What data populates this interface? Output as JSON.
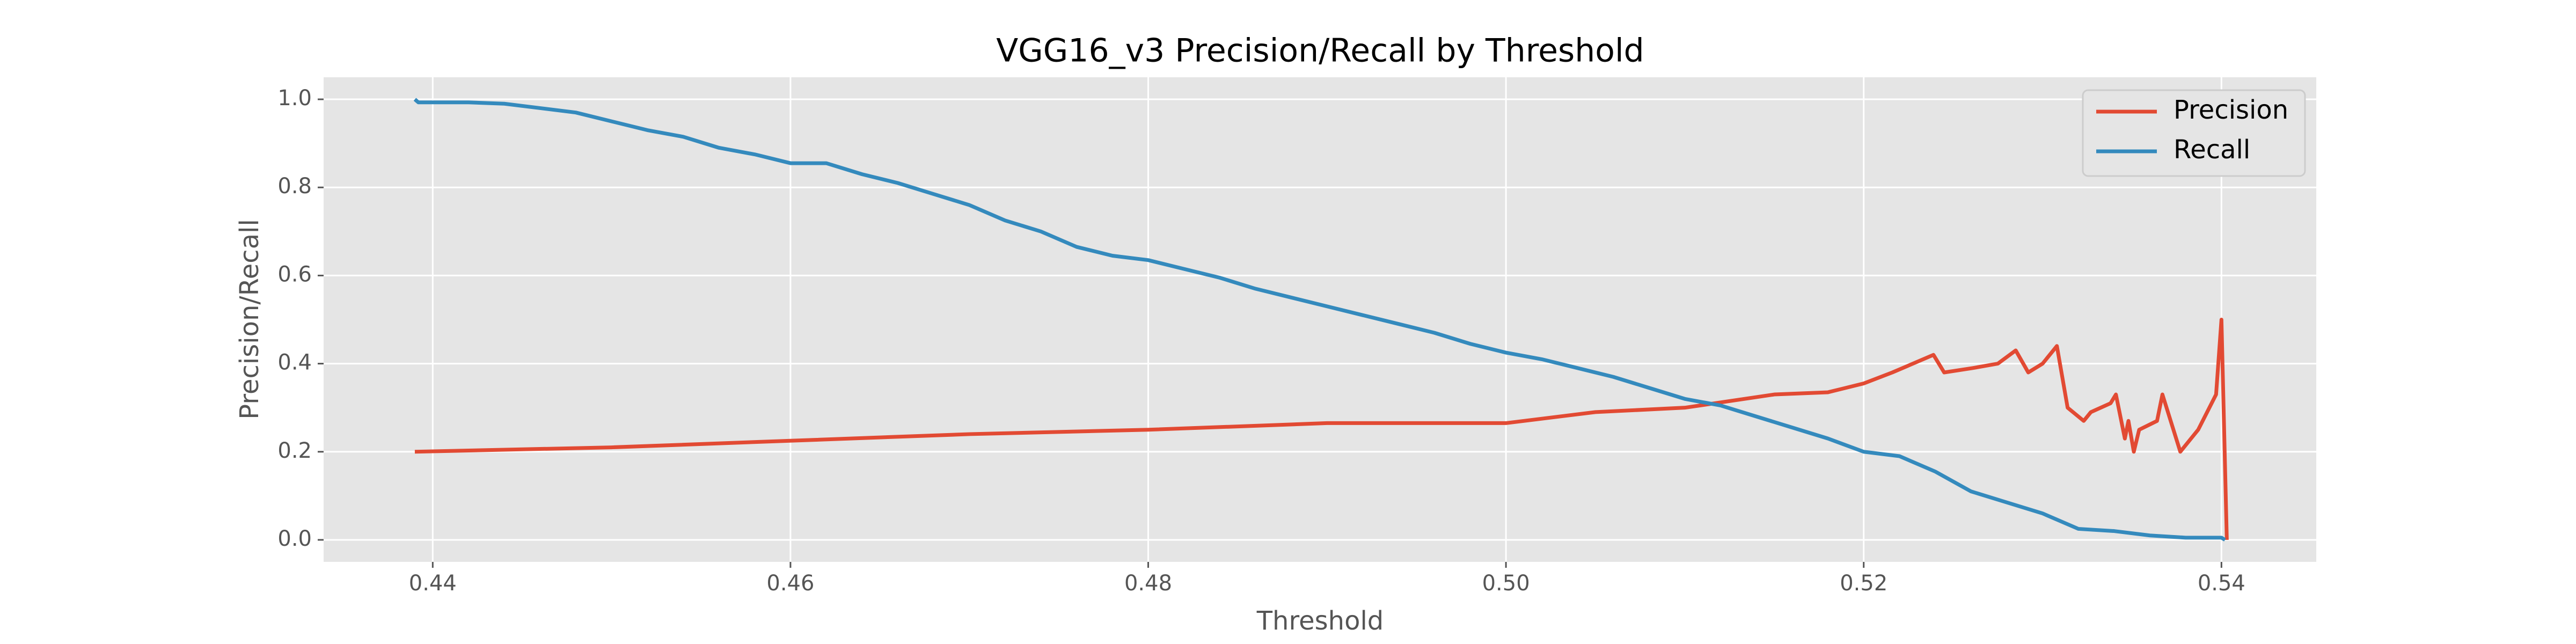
{
  "chart_data": {
    "type": "line",
    "title": "VGG16_v3 Precision/Recall by Threshold",
    "x_label": "Threshold",
    "y_label": "Precision/Recall",
    "xlim": [
      0.4339,
      0.5453
    ],
    "ylim": [
      -0.05,
      1.05
    ],
    "xticks": [
      0.44,
      0.46,
      0.48,
      0.5,
      0.52,
      0.54
    ],
    "yticks": [
      {
        "value": 0,
        "label": "0.0"
      },
      0.2,
      0.4,
      0.6,
      0.8,
      {
        "value": 1,
        "label": "1.0"
      }
    ],
    "grid": true,
    "legend": "upper right",
    "series": [
      {
        "name": "Precision",
        "color": "#E24A33",
        "x": [
          0.439,
          0.45,
          0.46,
          0.47,
          0.48,
          0.49,
          0.5,
          0.505,
          0.51,
          0.515,
          0.518,
          0.52,
          0.5216,
          0.5239,
          0.5245,
          0.5261,
          0.5275,
          0.5285,
          0.5292,
          0.53,
          0.5308,
          0.5314,
          0.5323,
          0.5327,
          0.5338,
          0.5341,
          0.5346,
          0.5348,
          0.5351,
          0.5354,
          0.5364,
          0.5367,
          0.5377,
          0.5387,
          0.5397,
          0.54,
          0.5403
        ],
        "values": [
          0.2,
          0.21,
          0.225,
          0.24,
          0.25,
          0.265,
          0.265,
          0.29,
          0.3,
          0.33,
          0.335,
          0.355,
          0.38,
          0.42,
          0.38,
          0.39,
          0.4,
          0.43,
          0.38,
          0.4,
          0.44,
          0.3,
          0.27,
          0.29,
          0.31,
          0.33,
          0.23,
          0.27,
          0.2,
          0.25,
          0.27,
          0.33,
          0.2,
          0.25,
          0.33,
          0.5,
          0.0
        ]
      },
      {
        "name": "Recall",
        "color": "#348ABD",
        "x": [
          0.439,
          0.4392,
          0.442,
          0.444,
          0.446,
          0.448,
          0.45,
          0.452,
          0.454,
          0.456,
          0.458,
          0.46,
          0.462,
          0.464,
          0.466,
          0.468,
          0.47,
          0.472,
          0.474,
          0.476,
          0.478,
          0.48,
          0.482,
          0.484,
          0.486,
          0.488,
          0.49,
          0.492,
          0.494,
          0.496,
          0.498,
          0.5,
          0.502,
          0.504,
          0.506,
          0.508,
          0.51,
          0.512,
          0.514,
          0.516,
          0.518,
          0.52,
          0.522,
          0.524,
          0.526,
          0.528,
          0.53,
          0.532,
          0.534,
          0.536,
          0.538,
          0.54,
          0.5402
        ],
        "values": [
          1.0,
          0.993,
          0.993,
          0.99,
          0.98,
          0.97,
          0.95,
          0.93,
          0.915,
          0.89,
          0.875,
          0.855,
          0.855,
          0.83,
          0.81,
          0.785,
          0.76,
          0.725,
          0.7,
          0.665,
          0.645,
          0.635,
          0.615,
          0.595,
          0.57,
          0.55,
          0.53,
          0.51,
          0.49,
          0.47,
          0.445,
          0.425,
          0.41,
          0.39,
          0.37,
          0.345,
          0.32,
          0.305,
          0.28,
          0.255,
          0.23,
          0.2,
          0.19,
          0.155,
          0.11,
          0.085,
          0.06,
          0.025,
          0.02,
          0.01,
          0.005,
          0.005,
          0.0
        ]
      }
    ]
  }
}
